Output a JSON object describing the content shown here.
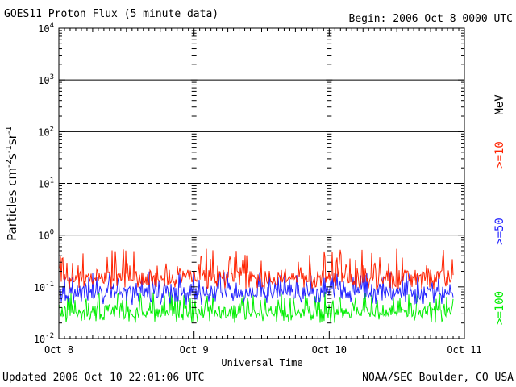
{
  "header": {
    "title": "GOES11 Proton Flux (5 minute data)",
    "begin": "Begin: 2006 Oct 8 0000 UTC"
  },
  "footer": {
    "updated": "Updated 2006 Oct 10 22:01:06 UTC",
    "credit": "NOAA/SEC Boulder, CO USA"
  },
  "legend": {
    "unit": "MeV",
    "items": [
      {
        "label": ">=10",
        "color": "#ff2200"
      },
      {
        "label": ">=50",
        "color": "#2222ff"
      },
      {
        "label": ">=100",
        "color": "#00ee00"
      }
    ]
  },
  "chart_data": {
    "type": "line",
    "title": "GOES11 Proton Flux (5 minute data)",
    "xlabel": "Universal Time",
    "ylabel": "Particles cm-2s-1sr-1",
    "yscale": "log",
    "ylim": [
      0.01,
      10000
    ],
    "y_ticks": [
      {
        "base": "10",
        "exp": "-2",
        "value": 0.01
      },
      {
        "base": "10",
        "exp": "-1",
        "value": 0.1
      },
      {
        "base": "10",
        "exp": "0",
        "value": 1
      },
      {
        "base": "10",
        "exp": "1",
        "value": 10
      },
      {
        "base": "10",
        "exp": "2",
        "value": 100
      },
      {
        "base": "10",
        "exp": "3",
        "value": 1000
      },
      {
        "base": "10",
        "exp": "4",
        "value": 10000
      }
    ],
    "x_ticks": [
      "Oct 8",
      "Oct 9",
      "Oct 10",
      "Oct 11"
    ],
    "xlim_days": [
      0,
      3
    ],
    "data_end_day": 2.92,
    "series": [
      {
        "name": ">=10 MeV",
        "color": "#ff2200",
        "typical": 0.16,
        "min": 0.09,
        "max": 0.55
      },
      {
        "name": ">=50 MeV",
        "color": "#2222ff",
        "typical": 0.08,
        "min": 0.045,
        "max": 0.2
      },
      {
        "name": ">=100 MeV",
        "color": "#00ee00",
        "typical": 0.035,
        "min": 0.02,
        "max": 0.08
      }
    ],
    "grid": "horizontal lines at 1, 100, 1000 (solid) and 10 (dashed)"
  }
}
